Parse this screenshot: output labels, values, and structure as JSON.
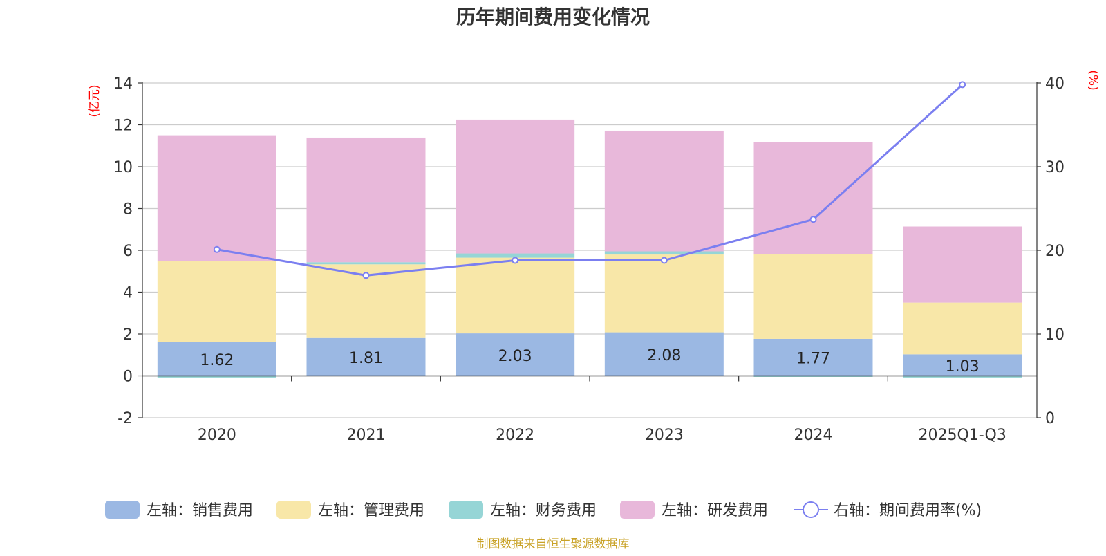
{
  "chart_data": {
    "type": "bar",
    "title": "历年期间费用变化情况",
    "categories": [
      "2020",
      "2021",
      "2022",
      "2023",
      "2024",
      "2025Q1-Q3"
    ],
    "left_axis": {
      "unit": "(亿元)",
      "ylim": [
        -2,
        14
      ],
      "ticks": [
        "-2",
        "0",
        "2",
        "4",
        "6",
        "8",
        "10",
        "12",
        "14"
      ]
    },
    "right_axis": {
      "unit": "(%)",
      "ylim": [
        0,
        40
      ],
      "ticks": [
        "0",
        "10",
        "20",
        "30",
        "40"
      ]
    },
    "series": [
      {
        "name": "左轴：销售费用",
        "type": "bar",
        "axis": "left",
        "color": "#9bb8e3",
        "values": [
          1.62,
          1.81,
          2.03,
          2.08,
          1.77,
          1.03
        ],
        "labels": [
          "1.62",
          "1.81",
          "2.03",
          "2.08",
          "1.77",
          "1.03"
        ]
      },
      {
        "name": "左轴：管理费用",
        "type": "bar",
        "axis": "left",
        "color": "#f8e7a8",
        "values": [
          3.88,
          3.52,
          3.62,
          3.72,
          4.06,
          2.47
        ]
      },
      {
        "name": "左轴：财务费用",
        "type": "bar",
        "axis": "left",
        "color": "#96d5d6",
        "values": [
          -0.08,
          0.1,
          0.2,
          0.15,
          -0.02,
          -0.08
        ]
      },
      {
        "name": "左轴：研发费用",
        "type": "bar",
        "axis": "left",
        "color": "#e8b8da",
        "values": [
          6.0,
          5.96,
          6.4,
          5.77,
          5.34,
          3.64
        ]
      },
      {
        "name": "右轴：期间费用率(%)",
        "type": "line",
        "axis": "right",
        "color": "#7b7ff0",
        "values": [
          20.1,
          17.0,
          18.8,
          18.8,
          23.7,
          39.8
        ]
      }
    ],
    "legend_position": "bottom",
    "grid": true
  },
  "footer": {
    "source": "制图数据来自恒生聚源数据库"
  },
  "colors": {
    "title": "#333333",
    "axis_unit": "#ff0000",
    "source": "#c9a227",
    "grid": "#cccccc",
    "axis": "#333333"
  }
}
